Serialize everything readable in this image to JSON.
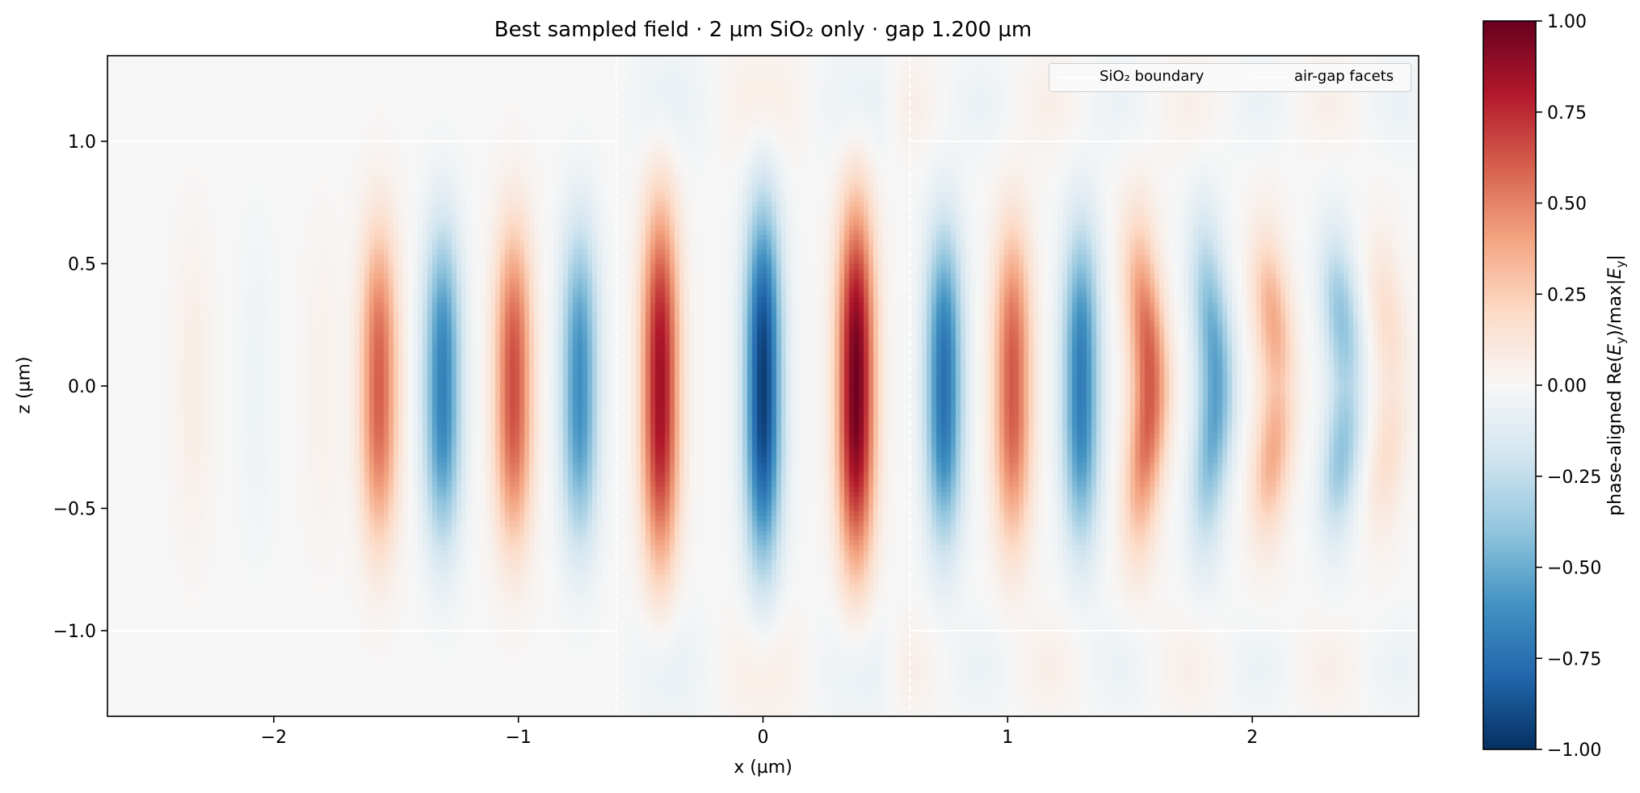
{
  "chart_data": {
    "type": "heatmap",
    "title": "Best sampled field · 2 µm SiO₂ only · gap 1.200 µm",
    "xlabel": "x (µm)",
    "ylabel": "z (µm)",
    "colorbar_label": "phase-aligned Re(E_y)/max|E_y|",
    "colormap": "RdBu_r",
    "xlim": [
      -2.68,
      2.68
    ],
    "ylim": [
      -1.35,
      1.35
    ],
    "clim": [
      -1.0,
      1.0
    ],
    "x_ticks": [
      -2,
      -1,
      0,
      1,
      2
    ],
    "x_tick_labels": [
      "−2",
      "−1",
      "0",
      "1",
      "2"
    ],
    "y_ticks": [
      1.0,
      0.5,
      0.0,
      -0.5,
      -1.0
    ],
    "y_tick_labels": [
      "1.0",
      "0.5",
      "0.0",
      "−0.5",
      "−1.0"
    ],
    "cb_ticks": [
      1.0,
      0.75,
      0.5,
      0.25,
      0.0,
      -0.25,
      -0.5,
      -0.75,
      -1.0
    ],
    "cb_tick_labels": [
      "1.00",
      "0.75",
      "0.50",
      "0.25",
      "0.00",
      "−0.25",
      "−0.50",
      "−0.75",
      "−1.00"
    ],
    "sio2_boundary": {
      "z": [
        -1.0,
        1.0
      ],
      "x_segments": [
        [
          -2.68,
          -0.6
        ],
        [
          0.6,
          2.68
        ]
      ]
    },
    "air_gap_facets": [
      -0.6,
      0.6
    ],
    "legend": {
      "position": "top-right",
      "entries": [
        "SiO₂ boundary",
        "air-gap facets"
      ]
    },
    "field_lobes": [
      {
        "x": -2.33,
        "amp": 0.07
      },
      {
        "x": -2.07,
        "amp": -0.05
      },
      {
        "x": -1.8,
        "amp": 0.05
      },
      {
        "x": -1.57,
        "amp": 0.6
      },
      {
        "x": -1.31,
        "amp": -0.68
      },
      {
        "x": -1.02,
        "amp": 0.65
      },
      {
        "x": -0.75,
        "amp": -0.62
      },
      {
        "x": -0.42,
        "amp": 0.85
      },
      {
        "x": 0.0,
        "amp": -0.95
      },
      {
        "x": 0.38,
        "amp": 0.98
      },
      {
        "x": 0.74,
        "amp": -0.75
      },
      {
        "x": 1.02,
        "amp": 0.62
      },
      {
        "x": 1.3,
        "amp": -0.7
      },
      {
        "x": 1.58,
        "amp": 0.62
      },
      {
        "x": 1.85,
        "amp": -0.55
      },
      {
        "x": 2.1,
        "amp": 0.45
      },
      {
        "x": 2.38,
        "amp": -0.48
      },
      {
        "x": 2.57,
        "amp": 0.2
      }
    ]
  }
}
